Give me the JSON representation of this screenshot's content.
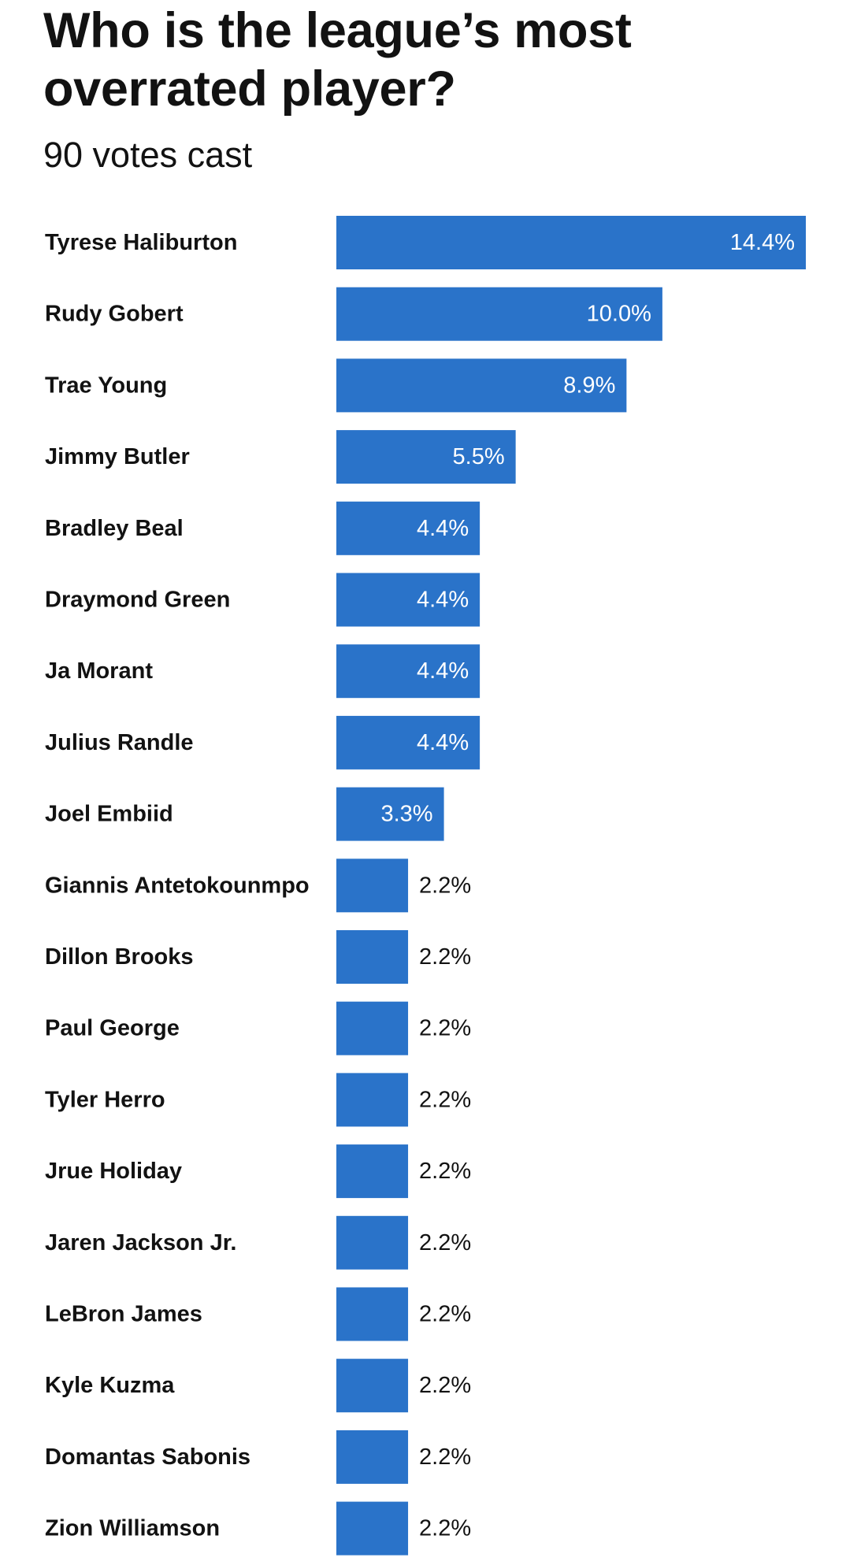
{
  "header": {
    "title": "Who is the league’s most overrated player?",
    "subtitle": "90 votes cast"
  },
  "colors": {
    "bar": "#2a73c9",
    "label_inside": "#ffffff",
    "label_outside": "#121212",
    "text": "#121212"
  },
  "chart_data": {
    "type": "bar",
    "orientation": "horizontal",
    "title": "Who is the league’s most overrated player?",
    "subtitle": "90 votes cast",
    "xlabel": "",
    "ylabel": "",
    "grid": false,
    "value_suffix": "%",
    "xlim": [
      0,
      14.4
    ],
    "categories": [
      "Tyrese Haliburton",
      "Rudy Gobert",
      "Trae Young",
      "Jimmy Butler",
      "Bradley Beal",
      "Draymond Green",
      "Ja Morant",
      "Julius Randle",
      "Joel Embiid",
      "Giannis Antetokounmpo",
      "Dillon Brooks",
      "Paul George",
      "Tyler Herro",
      "Jrue Holiday",
      "Jaren Jackson Jr.",
      "LeBron James",
      "Kyle Kuzma",
      "Domantas Sabonis",
      "Zion Williamson"
    ],
    "values": [
      14.4,
      10.0,
      8.9,
      5.5,
      4.4,
      4.4,
      4.4,
      4.4,
      3.3,
      2.2,
      2.2,
      2.2,
      2.2,
      2.2,
      2.2,
      2.2,
      2.2,
      2.2,
      2.2
    ],
    "value_labels": [
      "14.4%",
      "10.0%",
      "8.9%",
      "5.5%",
      "4.4%",
      "4.4%",
      "4.4%",
      "4.4%",
      "3.3%",
      "2.2%",
      "2.2%",
      "2.2%",
      "2.2%",
      "2.2%",
      "2.2%",
      "2.2%",
      "2.2%",
      "2.2%",
      "2.2%"
    ]
  }
}
